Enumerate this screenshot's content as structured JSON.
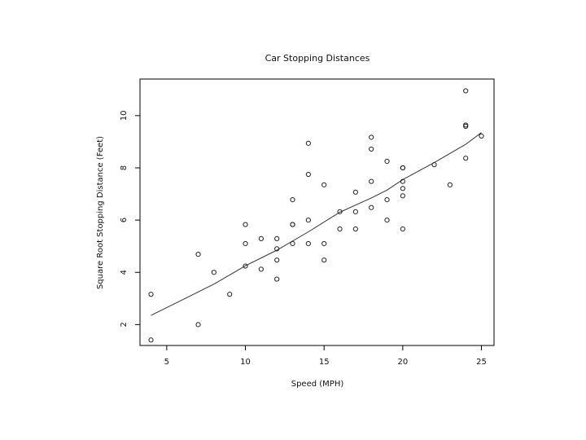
{
  "chart_data": {
    "type": "scatter",
    "title": "Car Stopping Distances",
    "xlabel": "Speed (MPH)",
    "ylabel": "Square Root Stopping Distance (Feet)",
    "xlim": [
      3.3,
      25.8
    ],
    "ylim": [
      1.2,
      11.4
    ],
    "xticks": [
      "5",
      "10",
      "15",
      "20",
      "25"
    ],
    "yticks": [
      "2",
      "4",
      "6",
      "8",
      "10"
    ],
    "grid": false,
    "legend": "none",
    "points": [
      [
        4,
        1.41
      ],
      [
        4,
        3.16
      ],
      [
        7,
        2.0
      ],
      [
        7,
        4.69
      ],
      [
        8,
        4.0
      ],
      [
        9,
        3.16
      ],
      [
        10,
        4.24
      ],
      [
        10,
        5.1
      ],
      [
        10,
        5.83
      ],
      [
        11,
        4.12
      ],
      [
        11,
        5.29
      ],
      [
        12,
        3.74
      ],
      [
        12,
        4.47
      ],
      [
        12,
        4.9
      ],
      [
        12,
        5.29
      ],
      [
        13,
        5.1
      ],
      [
        13,
        5.83
      ],
      [
        13,
        5.83
      ],
      [
        13,
        6.78
      ],
      [
        14,
        5.1
      ],
      [
        14,
        6.0
      ],
      [
        14,
        7.75
      ],
      [
        14,
        8.94
      ],
      [
        15,
        4.47
      ],
      [
        15,
        5.1
      ],
      [
        15,
        7.35
      ],
      [
        16,
        5.66
      ],
      [
        16,
        6.32
      ],
      [
        17,
        5.66
      ],
      [
        17,
        6.32
      ],
      [
        17,
        7.07
      ],
      [
        18,
        6.48
      ],
      [
        18,
        7.48
      ],
      [
        18,
        8.72
      ],
      [
        18,
        9.17
      ],
      [
        19,
        6.0
      ],
      [
        19,
        6.78
      ],
      [
        19,
        8.25
      ],
      [
        20,
        5.66
      ],
      [
        20,
        6.93
      ],
      [
        20,
        7.21
      ],
      [
        20,
        7.48
      ],
      [
        20,
        8.0
      ],
      [
        20,
        8.0
      ],
      [
        22,
        8.12
      ],
      [
        23,
        7.35
      ],
      [
        24,
        8.37
      ],
      [
        24,
        9.59
      ],
      [
        24,
        9.64
      ],
      [
        24,
        10.95
      ],
      [
        25,
        9.22
      ]
    ],
    "smooth_line": [
      [
        4,
        2.35
      ],
      [
        6,
        2.95
      ],
      [
        8,
        3.55
      ],
      [
        10,
        4.25
      ],
      [
        12,
        4.85
      ],
      [
        14,
        5.55
      ],
      [
        16,
        6.3
      ],
      [
        18,
        6.85
      ],
      [
        19,
        7.15
      ],
      [
        20,
        7.55
      ],
      [
        22,
        8.2
      ],
      [
        24,
        8.9
      ],
      [
        25,
        9.35
      ]
    ]
  }
}
